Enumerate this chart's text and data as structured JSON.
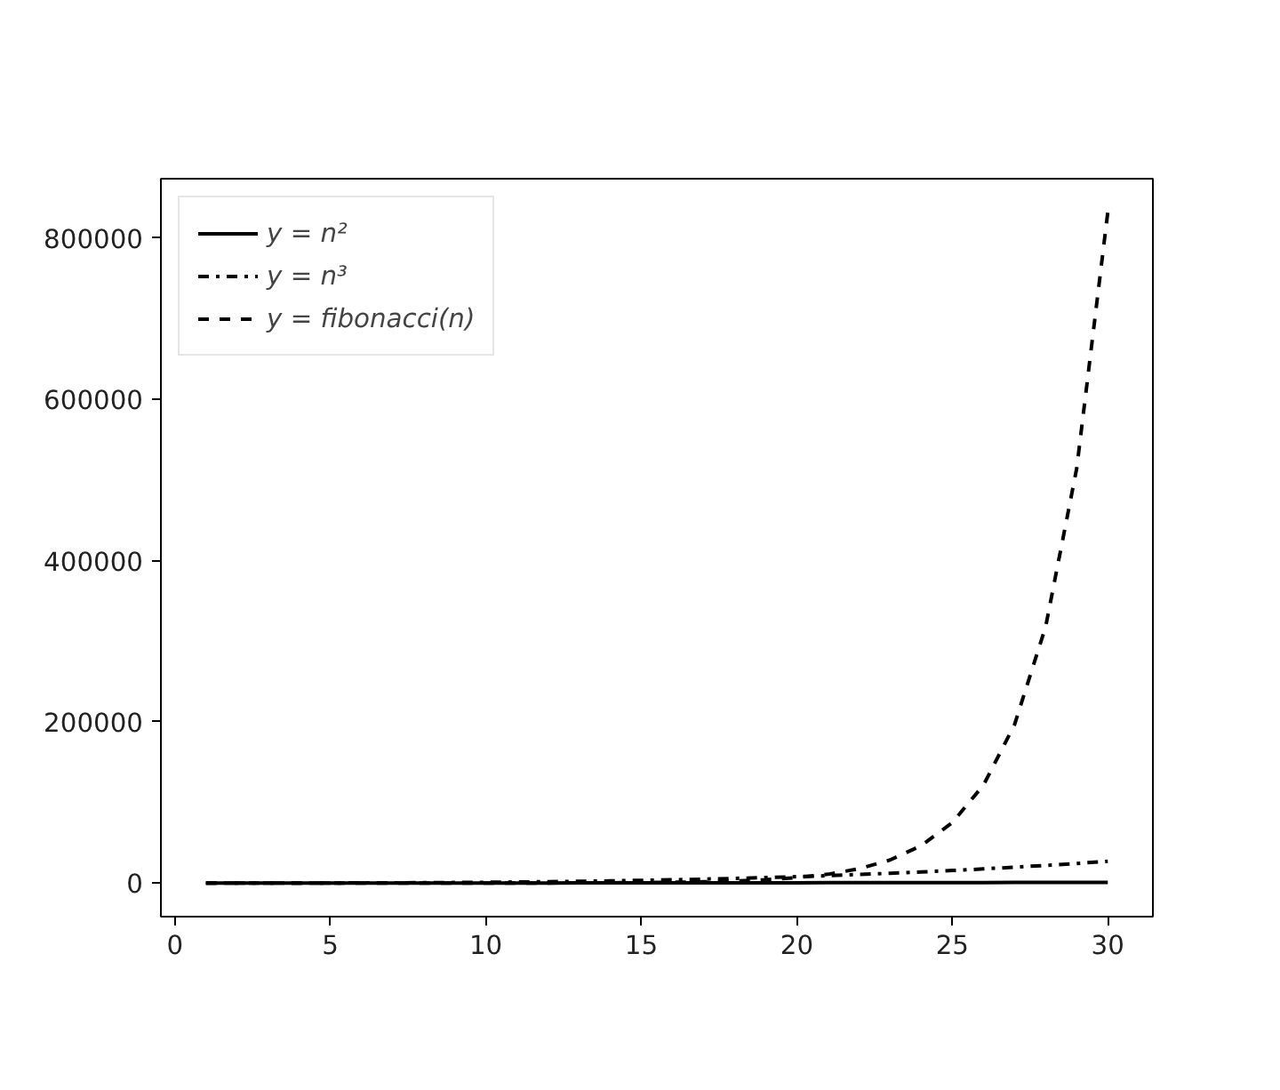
{
  "chart_data": {
    "type": "line",
    "x": [
      1,
      2,
      3,
      4,
      5,
      6,
      7,
      8,
      9,
      10,
      11,
      12,
      13,
      14,
      15,
      16,
      17,
      18,
      19,
      20,
      21,
      22,
      23,
      24,
      25,
      26,
      27,
      28,
      29,
      30
    ],
    "series": [
      {
        "name": "y = n²",
        "color": "#000000",
        "line_style": "solid",
        "values": [
          1,
          4,
          9,
          16,
          25,
          36,
          49,
          64,
          81,
          100,
          121,
          144,
          169,
          196,
          225,
          256,
          289,
          324,
          361,
          400,
          441,
          484,
          529,
          576,
          625,
          676,
          729,
          784,
          841,
          900
        ]
      },
      {
        "name": "y = n³",
        "color": "#000000",
        "line_style": "dashdot",
        "values": [
          1,
          8,
          27,
          64,
          125,
          216,
          343,
          512,
          729,
          1000,
          1331,
          1728,
          2197,
          2744,
          3375,
          4096,
          4913,
          5832,
          6859,
          8000,
          9261,
          10648,
          12167,
          13824,
          15625,
          17576,
          19683,
          21952,
          24389,
          27000
        ]
      },
      {
        "name": "y = fibonacci(n)",
        "color": "#000000",
        "line_style": "dashed",
        "values": [
          1,
          1,
          2,
          3,
          5,
          8,
          13,
          21,
          34,
          55,
          89,
          144,
          233,
          377,
          610,
          987,
          1597,
          2584,
          4181,
          6765,
          10946,
          17711,
          28657,
          46368,
          75025,
          121393,
          196418,
          317811,
          514229,
          832040
        ]
      }
    ],
    "xlim": [
      -0.45,
      31.45
    ],
    "ylim": [
      -41602,
      873642
    ],
    "xticks": [
      0,
      5,
      10,
      15,
      20,
      25,
      30
    ],
    "yticks": [
      0,
      200000,
      400000,
      600000,
      800000
    ],
    "grid": false,
    "legend": "top left",
    "marker": "none"
  }
}
